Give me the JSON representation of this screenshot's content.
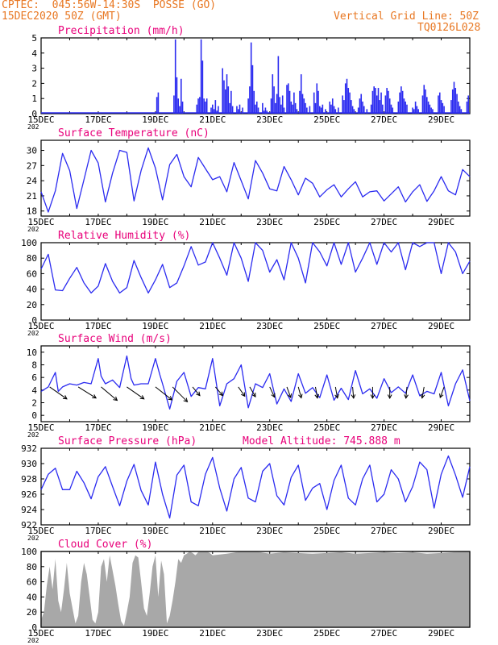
{
  "header": {
    "line1": "CPTEC:  045:56W-14:30S  POSSE (GO)",
    "line2": "15DEC2020 50Z (GMT)",
    "right1": "Vertical Grid Line: 50Z",
    "right2": "TQ0126L028"
  },
  "colors": {
    "header": "#e87722",
    "title": "#e8007a",
    "line": "#2b2bf0",
    "bar": "#2b2bf0",
    "cloud": "#a8a8a8",
    "wind_arrow": "#000000"
  },
  "x_tick_labels": [
    "15DEC",
    "17DEC",
    "19DEC",
    "21DEC",
    "23DEC",
    "25DEC",
    "27DEC",
    "29DEC"
  ],
  "x_tick_subtext": "202",
  "chart_data": [
    {
      "id": "precip",
      "type": "bar",
      "title": "Precipitation (mm/h)",
      "ylim": [
        0,
        5
      ],
      "yticks": [
        "0",
        "1",
        "2",
        "3",
        "4",
        "5"
      ],
      "xlim_days": [
        0,
        15
      ],
      "values": [
        [
          4.05,
          1.1
        ],
        [
          4.1,
          1.4
        ],
        [
          4.65,
          1.2
        ],
        [
          4.7,
          4.9
        ],
        [
          4.75,
          2.4
        ],
        [
          4.8,
          1.0
        ],
        [
          4.85,
          0.5
        ],
        [
          4.9,
          2.3
        ],
        [
          4.95,
          0.8
        ],
        [
          5.45,
          0.6
        ],
        [
          5.5,
          1.0
        ],
        [
          5.55,
          1.1
        ],
        [
          5.6,
          4.9
        ],
        [
          5.65,
          3.5
        ],
        [
          5.7,
          1.0
        ],
        [
          5.75,
          0.8
        ],
        [
          5.8,
          1.0
        ],
        [
          5.95,
          0.4
        ],
        [
          6.0,
          0.6
        ],
        [
          6.05,
          0.3
        ],
        [
          6.1,
          0.9
        ],
        [
          6.15,
          0.2
        ],
        [
          6.2,
          0.5
        ],
        [
          6.35,
          3.0
        ],
        [
          6.4,
          2.2
        ],
        [
          6.45,
          1.6
        ],
        [
          6.5,
          2.6
        ],
        [
          6.55,
          1.8
        ],
        [
          6.6,
          0.7
        ],
        [
          6.65,
          1.5
        ],
        [
          6.7,
          0.5
        ],
        [
          6.85,
          0.5
        ],
        [
          6.9,
          0.3
        ],
        [
          6.95,
          0.6
        ],
        [
          7.05,
          0.4
        ],
        [
          7.25,
          1.0
        ],
        [
          7.3,
          1.8
        ],
        [
          7.35,
          4.7
        ],
        [
          7.4,
          3.2
        ],
        [
          7.45,
          1.5
        ],
        [
          7.5,
          0.6
        ],
        [
          7.55,
          0.8
        ],
        [
          7.6,
          0.4
        ],
        [
          7.75,
          0.7
        ],
        [
          7.8,
          0.2
        ],
        [
          7.85,
          0.4
        ],
        [
          7.9,
          0.2
        ],
        [
          8.05,
          1.0
        ],
        [
          8.1,
          2.6
        ],
        [
          8.15,
          1.8
        ],
        [
          8.2,
          0.7
        ],
        [
          8.25,
          1.3
        ],
        [
          8.3,
          3.8
        ],
        [
          8.35,
          1.1
        ],
        [
          8.4,
          0.6
        ],
        [
          8.45,
          1.2
        ],
        [
          8.5,
          0.4
        ],
        [
          8.6,
          1.9
        ],
        [
          8.65,
          2.0
        ],
        [
          8.7,
          1.5
        ],
        [
          8.75,
          0.8
        ],
        [
          8.8,
          0.6
        ],
        [
          8.85,
          1.4
        ],
        [
          8.9,
          0.7
        ],
        [
          8.95,
          0.3
        ],
        [
          9.05,
          1.5
        ],
        [
          9.1,
          2.6
        ],
        [
          9.15,
          1.3
        ],
        [
          9.2,
          1.0
        ],
        [
          9.25,
          0.7
        ],
        [
          9.3,
          0.4
        ],
        [
          9.4,
          0.5
        ],
        [
          9.55,
          1.4
        ],
        [
          9.6,
          0.7
        ],
        [
          9.65,
          2.0
        ],
        [
          9.7,
          1.5
        ],
        [
          9.75,
          0.5
        ],
        [
          9.8,
          0.4
        ],
        [
          9.85,
          0.6
        ],
        [
          9.95,
          0.3
        ],
        [
          10.1,
          0.8
        ],
        [
          10.15,
          0.6
        ],
        [
          10.2,
          1.0
        ],
        [
          10.25,
          0.5
        ],
        [
          10.3,
          0.3
        ],
        [
          10.4,
          0.4
        ],
        [
          10.55,
          1.2
        ],
        [
          10.6,
          0.9
        ],
        [
          10.65,
          2.0
        ],
        [
          10.7,
          2.3
        ],
        [
          10.75,
          1.7
        ],
        [
          10.8,
          1.4
        ],
        [
          10.85,
          0.9
        ],
        [
          10.9,
          0.5
        ],
        [
          10.95,
          0.3
        ],
        [
          11.1,
          0.4
        ],
        [
          11.15,
          1.0
        ],
        [
          11.2,
          1.3
        ],
        [
          11.25,
          0.8
        ],
        [
          11.3,
          0.5
        ],
        [
          11.4,
          0.3
        ],
        [
          11.55,
          0.6
        ],
        [
          11.6,
          1.5
        ],
        [
          11.65,
          1.8
        ],
        [
          11.7,
          1.7
        ],
        [
          11.75,
          1.2
        ],
        [
          11.8,
          1.7
        ],
        [
          11.85,
          0.9
        ],
        [
          11.9,
          1.4
        ],
        [
          11.95,
          0.6
        ],
        [
          12.05,
          1.2
        ],
        [
          12.1,
          1.7
        ],
        [
          12.15,
          1.5
        ],
        [
          12.2,
          1.0
        ],
        [
          12.25,
          0.6
        ],
        [
          12.3,
          0.4
        ],
        [
          12.5,
          0.8
        ],
        [
          12.55,
          1.4
        ],
        [
          12.6,
          1.8
        ],
        [
          12.65,
          1.5
        ],
        [
          12.7,
          1.0
        ],
        [
          12.75,
          0.8
        ],
        [
          12.8,
          0.6
        ],
        [
          13.0,
          0.4
        ],
        [
          13.05,
          0.3
        ],
        [
          13.1,
          0.8
        ],
        [
          13.15,
          0.5
        ],
        [
          13.2,
          0.3
        ],
        [
          13.35,
          1.2
        ],
        [
          13.4,
          1.9
        ],
        [
          13.45,
          1.6
        ],
        [
          13.5,
          1.1
        ],
        [
          13.55,
          0.8
        ],
        [
          13.6,
          0.6
        ],
        [
          13.65,
          0.4
        ],
        [
          13.7,
          0.3
        ],
        [
          13.9,
          1.2
        ],
        [
          13.95,
          1.4
        ],
        [
          14.0,
          0.9
        ],
        [
          14.05,
          0.7
        ],
        [
          14.1,
          0.5
        ],
        [
          14.35,
          0.9
        ],
        [
          14.4,
          1.6
        ],
        [
          14.45,
          2.1
        ],
        [
          14.5,
          1.7
        ],
        [
          14.55,
          1.3
        ],
        [
          14.6,
          0.8
        ],
        [
          14.65,
          0.5
        ],
        [
          14.7,
          0.3
        ],
        [
          14.9,
          0.8
        ],
        [
          14.95,
          1.2
        ]
      ]
    },
    {
      "id": "temp",
      "type": "line",
      "title": "Surface Temperature (nC)",
      "ylim": [
        17,
        32
      ],
      "yticks": [
        "18",
        "21",
        "24",
        "27",
        "30"
      ],
      "ytick_values": [
        18,
        21,
        24,
        27,
        30
      ],
      "x": [
        0,
        0.25,
        0.5,
        0.75,
        1,
        1.25,
        1.5,
        1.75,
        2,
        2.25,
        2.5,
        2.75,
        3,
        3.25,
        3.5,
        3.75,
        4,
        4.25,
        4.5,
        4.75,
        5,
        5.25,
        5.5,
        5.75,
        6,
        6.25,
        6.5,
        6.75,
        7,
        7.25,
        7.5,
        7.75,
        8,
        8.25,
        8.5,
        8.75,
        9,
        9.25,
        9.5,
        9.75,
        10,
        10.25,
        10.5,
        10.75,
        11,
        11.25,
        11.5,
        11.75,
        12,
        12.25,
        12.5,
        12.75,
        13,
        13.25,
        13.5,
        13.75,
        14,
        14.25,
        14.5,
        14.75,
        15
      ],
      "y": [
        21.8,
        17.8,
        22.0,
        29.4,
        26.0,
        18.5,
        24.2,
        30.0,
        27.5,
        19.8,
        25.5,
        30.0,
        29.6,
        20.0,
        26.0,
        30.5,
        26.5,
        20.2,
        27.2,
        29.2,
        24.8,
        22.8,
        28.6,
        26.4,
        24.2,
        24.8,
        21.8,
        27.6,
        24.0,
        20.4,
        28.0,
        25.5,
        22.4,
        22.0,
        26.8,
        24.2,
        21.2,
        24.5,
        23.5,
        20.8,
        22.2,
        23.2,
        20.8,
        22.4,
        23.8,
        20.8,
        21.8,
        22.0,
        20.0,
        21.4,
        22.8,
        19.8,
        21.8,
        23.2,
        19.9,
        22.0,
        24.8,
        22.0,
        21.2,
        26.2,
        24.8
      ]
    },
    {
      "id": "rh",
      "type": "line",
      "title": "Relative Humidity (%)",
      "ylim": [
        0,
        100
      ],
      "yticks": [
        "0",
        "20",
        "40",
        "60",
        "80",
        "100"
      ],
      "ytick_values": [
        0,
        20,
        40,
        60,
        80,
        100
      ],
      "x": [
        0,
        0.25,
        0.5,
        0.75,
        1,
        1.25,
        1.5,
        1.75,
        2,
        2.25,
        2.5,
        2.75,
        3,
        3.25,
        3.5,
        3.75,
        4,
        4.25,
        4.5,
        4.75,
        5,
        5.25,
        5.5,
        5.75,
        6,
        6.25,
        6.5,
        6.75,
        7,
        7.25,
        7.5,
        7.75,
        8,
        8.25,
        8.5,
        8.75,
        9,
        9.25,
        9.5,
        9.75,
        10,
        10.25,
        10.5,
        10.75,
        11,
        11.25,
        11.5,
        11.75,
        12,
        12.25,
        12.5,
        12.75,
        13,
        13.25,
        13.5,
        13.75,
        14,
        14.25,
        14.5,
        14.75,
        15
      ],
      "y": [
        66,
        85,
        39,
        38,
        54,
        68,
        48,
        35,
        44,
        73,
        50,
        35,
        42,
        77,
        55,
        35,
        52,
        72,
        42,
        48,
        70,
        95,
        71,
        75,
        100,
        80,
        58,
        100,
        80,
        50,
        100,
        90,
        62,
        78,
        52,
        100,
        80,
        48,
        100,
        88,
        70,
        100,
        72,
        100,
        62,
        80,
        100,
        72,
        100,
        88,
        100,
        65,
        100,
        95,
        100,
        100,
        60,
        100,
        88,
        60,
        76
      ]
    },
    {
      "id": "wind",
      "type": "line",
      "title": "Surface Wind (m/s)",
      "ylim": [
        -1,
        11
      ],
      "yticks": [
        "0",
        "2",
        "4",
        "6",
        "8",
        "10"
      ],
      "ytick_values": [
        0,
        2,
        4,
        6,
        8,
        10
      ],
      "x": [
        0,
        0.25,
        0.5,
        0.6,
        0.75,
        1,
        1.25,
        1.5,
        1.75,
        2,
        2.1,
        2.25,
        2.5,
        2.75,
        3,
        3.15,
        3.25,
        3.5,
        3.75,
        4,
        4.15,
        4.25,
        4.5,
        4.75,
        5,
        5.25,
        5.5,
        5.75,
        6,
        6.25,
        6.5,
        6.75,
        7,
        7.25,
        7.5,
        7.75,
        8,
        8.25,
        8.5,
        8.75,
        9,
        9.25,
        9.5,
        9.75,
        10,
        10.25,
        10.5,
        10.75,
        11,
        11.25,
        11.5,
        11.75,
        12,
        12.25,
        12.5,
        12.75,
        13,
        13.25,
        13.5,
        13.75,
        14,
        14.25,
        14.5,
        14.75,
        15
      ],
      "y": [
        3.8,
        4.5,
        6.8,
        3.8,
        4.5,
        5.0,
        4.8,
        5.2,
        5.0,
        9.0,
        6.2,
        5.0,
        5.6,
        4.4,
        9.4,
        5.8,
        4.8,
        5.0,
        5.0,
        9.0,
        6.5,
        5.0,
        1.0,
        5.4,
        6.8,
        3.0,
        4.4,
        4.2,
        9.0,
        1.5,
        5.0,
        5.8,
        8.0,
        1.2,
        5.0,
        4.4,
        6.6,
        1.8,
        4.2,
        2.2,
        6.6,
        3.5,
        4.4,
        2.8,
        6.4,
        2.4,
        4.3,
        2.5,
        7.1,
        3.4,
        4.2,
        2.7,
        5.8,
        3.6,
        4.5,
        3.5,
        6.4,
        3.1,
        3.8,
        3.4,
        6.8,
        1.5,
        5.0,
        7.2,
        2.3
      ]
    },
    {
      "id": "pressure",
      "type": "line",
      "title": "Surface Pressure (hPa)",
      "annotation": "Model Altitude: 745.888  m",
      "ylim": [
        922,
        932
      ],
      "yticks": [
        "922",
        "924",
        "926",
        "928",
        "930",
        "932"
      ],
      "ytick_values": [
        922,
        924,
        926,
        928,
        930,
        932
      ],
      "x": [
        0,
        0.25,
        0.5,
        0.75,
        1,
        1.25,
        1.5,
        1.75,
        2,
        2.25,
        2.5,
        2.75,
        3,
        3.25,
        3.5,
        3.75,
        4,
        4.25,
        4.5,
        4.75,
        5,
        5.25,
        5.5,
        5.75,
        6,
        6.25,
        6.5,
        6.75,
        7,
        7.25,
        7.5,
        7.75,
        8,
        8.25,
        8.5,
        8.75,
        9,
        9.25,
        9.5,
        9.75,
        10,
        10.25,
        10.5,
        10.75,
        11,
        11.25,
        11.5,
        11.75,
        12,
        12.25,
        12.5,
        12.75,
        13,
        13.25,
        13.5,
        13.75,
        14,
        14.25,
        14.5,
        14.75,
        15
      ],
      "y": [
        926.6,
        928.6,
        929.4,
        926.6,
        926.6,
        929.0,
        927.5,
        925.4,
        928.3,
        929.6,
        927.0,
        924.5,
        927.7,
        929.9,
        926.5,
        924.6,
        930.2,
        926.0,
        922.9,
        928.5,
        929.8,
        925.0,
        924.5,
        928.6,
        930.8,
        926.8,
        923.8,
        928.0,
        929.5,
        925.5,
        925.0,
        929.0,
        930.0,
        925.8,
        924.6,
        928.2,
        929.8,
        925.2,
        926.8,
        927.4,
        924.0,
        927.8,
        929.8,
        925.5,
        924.6,
        928.0,
        929.8,
        925.0,
        926.0,
        929.2,
        928.0,
        925.0,
        927.0,
        930.2,
        929.2,
        924.2,
        928.6,
        931.0,
        928.5,
        925.6,
        929.6
      ]
    },
    {
      "id": "cloud",
      "type": "area",
      "title": "Cloud Cover (%)",
      "ylim": [
        0,
        100
      ],
      "yticks": [
        "0",
        "20",
        "40",
        "60",
        "80",
        "100"
      ],
      "ytick_values": [
        0,
        20,
        40,
        60,
        80,
        100
      ],
      "x": [
        0,
        0.1,
        0.2,
        0.3,
        0.4,
        0.5,
        0.6,
        0.7,
        0.8,
        0.9,
        1.0,
        1.1,
        1.2,
        1.3,
        1.4,
        1.5,
        1.6,
        1.7,
        1.8,
        1.9,
        2.0,
        2.1,
        2.2,
        2.3,
        2.4,
        2.5,
        2.6,
        2.7,
        2.8,
        2.9,
        3.0,
        3.1,
        3.2,
        3.3,
        3.4,
        3.5,
        3.6,
        3.7,
        3.8,
        3.9,
        4.0,
        4.1,
        4.2,
        4.3,
        4.4,
        4.5,
        4.6,
        4.7,
        4.8,
        4.9,
        5.0,
        5.1,
        5.2,
        5.3,
        5.4,
        5.5,
        5.6,
        5.7,
        5.8,
        5.9,
        6.0,
        6.5,
        7.0,
        7.5,
        8.0,
        8.5,
        9.0,
        9.5,
        10.0,
        10.5,
        11.0,
        11.5,
        12.0,
        12.5,
        13.0,
        13.5,
        14.0,
        14.5,
        15.0
      ],
      "y": [
        10,
        20,
        55,
        80,
        50,
        90,
        35,
        20,
        50,
        85,
        45,
        25,
        5,
        15,
        60,
        85,
        70,
        40,
        10,
        5,
        20,
        80,
        90,
        60,
        95,
        75,
        55,
        30,
        8,
        2,
        20,
        40,
        85,
        95,
        92,
        60,
        25,
        15,
        45,
        80,
        95,
        40,
        88,
        70,
        5,
        15,
        35,
        60,
        90,
        85,
        95,
        97,
        100,
        98,
        95,
        99,
        100,
        100,
        100,
        98,
        95,
        97,
        100,
        100,
        97,
        99,
        98,
        97,
        98,
        99,
        97,
        98,
        99,
        98,
        99,
        97,
        98,
        99,
        100
      ]
    }
  ]
}
